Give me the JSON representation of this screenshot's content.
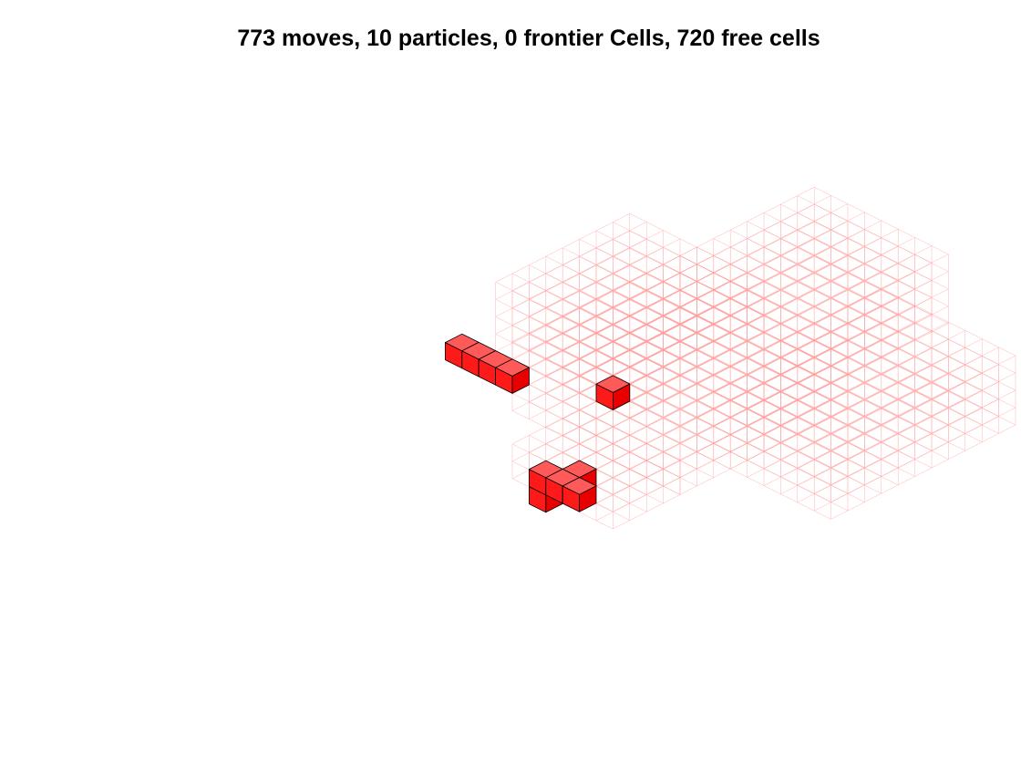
{
  "title": "773 moves, 10 particles, 0 frontier Cells, 720 free cells",
  "colors": {
    "grid_line": "#ff9a9a",
    "particle_top": "#ff5a5a",
    "particle_front": "#ff1a1a",
    "particle_side": "#e80000",
    "particle_edge": "#000000"
  },
  "stats": {
    "moves": 773,
    "particles": 10,
    "frontier_cells": 0,
    "free_cells": 720
  },
  "free_space_blocks": [
    {
      "name": "left-block",
      "x": [
        0,
        8
      ],
      "y": [
        9,
        17
      ],
      "z": [
        0,
        4
      ]
    },
    {
      "name": "back-block",
      "x": [
        4,
        12
      ],
      "y": [
        16,
        24
      ],
      "z": [
        0,
        4
      ]
    },
    {
      "name": "center-block",
      "x": [
        4,
        14
      ],
      "y": [
        6,
        16
      ],
      "z": [
        0,
        4
      ]
    },
    {
      "name": "right-block",
      "x": [
        12,
        20
      ],
      "y": [
        9,
        20
      ],
      "z": [
        0,
        4
      ]
    },
    {
      "name": "front-block",
      "x": [
        8,
        14
      ],
      "y": [
        2,
        6
      ],
      "z": [
        0,
        2
      ]
    }
  ],
  "particles": [
    {
      "x": 0,
      "y": 6,
      "z": 1
    },
    {
      "x": 1,
      "y": 6,
      "z": 1
    },
    {
      "x": 2,
      "y": 6,
      "z": 1
    },
    {
      "x": 3,
      "y": 6,
      "z": 1
    },
    {
      "x": 7,
      "y": 8,
      "z": 1
    },
    {
      "x": 10,
      "y": 1,
      "z": 0
    },
    {
      "x": 10,
      "y": 1,
      "z": 1
    },
    {
      "x": 11,
      "y": 1,
      "z": 1
    },
    {
      "x": 12,
      "y": 1,
      "z": 1
    },
    {
      "x": 11,
      "y": 2,
      "z": 1
    }
  ]
}
